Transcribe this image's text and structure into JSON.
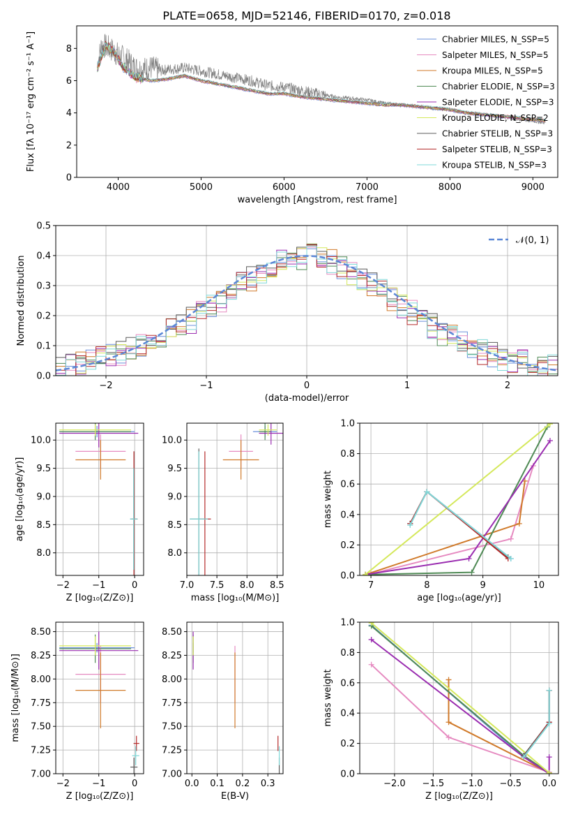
{
  "chart_data": [
    {
      "type": "line",
      "title": "PLATE=0658, MJD=52146, FIBERID=0170, z=0.018",
      "xlabel": "wavelength [Angstrom, rest frame]",
      "ylabel": "Flux [fλ 10⁻¹⁷ erg cm⁻² s⁻¹ A⁻¹]",
      "xlim": [
        3500,
        9300
      ],
      "ylim": [
        0,
        9.4
      ],
      "xticks": [
        4000,
        5000,
        6000,
        7000,
        8000,
        9000
      ],
      "yticks": [
        0,
        2,
        4,
        6,
        8
      ],
      "grid": false,
      "legend_position": "upper right",
      "data_series": {
        "name": "data",
        "color": "#808080",
        "x": [
          3750,
          3800,
          3900,
          4000,
          4100,
          4200,
          4300,
          4400,
          4500,
          4600,
          4800,
          5000,
          5200,
          5400,
          5600,
          5800,
          6000,
          6200,
          6400,
          6600,
          6800,
          7000,
          7200,
          7400,
          7600,
          7800,
          8000,
          8200,
          8400,
          8600,
          8800,
          9000,
          9150
        ],
        "y": [
          7.0,
          8.2,
          8.0,
          7.6,
          7.3,
          6.8,
          6.7,
          6.8,
          6.6,
          6.7,
          6.8,
          6.6,
          6.4,
          6.2,
          6.0,
          5.7,
          5.6,
          5.4,
          5.2,
          5.0,
          4.9,
          4.8,
          4.6,
          4.5,
          4.4,
          4.3,
          4.2,
          4.0,
          3.9,
          3.8,
          3.6,
          3.5,
          3.4
        ]
      },
      "series": [
        {
          "name": "Chabrier MILES, N_SSP=5",
          "color": "#6a8fdb"
        },
        {
          "name": "Salpeter MILES, N_SSP=5",
          "color": "#e68ac0"
        },
        {
          "name": "Kroupa MILES, N_SSP=5",
          "color": "#d07a2a"
        },
        {
          "name": "Chabrier ELODIE, N_SSP=3",
          "color": "#4f8a55"
        },
        {
          "name": "Salpeter ELODIE, N_SSP=3",
          "color": "#9a2cb0"
        },
        {
          "name": "Kroupa ELODIE, N_SSP=2",
          "color": "#d4e85a"
        },
        {
          "name": "Chabrier STELIB, N_SSP=3",
          "color": "#5a5a5a"
        },
        {
          "name": "Salpeter STELIB, N_SSP=3",
          "color": "#b52a2a"
        },
        {
          "name": "Kroupa STELIB, N_SSP=3",
          "color": "#7fd8d8"
        }
      ],
      "model_x": [
        3750,
        3850,
        3950,
        4050,
        4200,
        4400,
        4600,
        4800,
        5000,
        5200,
        5400,
        5600,
        5800,
        6000,
        6200,
        6400,
        6600,
        6800,
        7000,
        7200,
        7400,
        7600,
        7800,
        8000,
        8200,
        8400,
        8600,
        8800,
        9000,
        9150
      ],
      "model_y": [
        6.8,
        8.2,
        7.8,
        6.9,
        6.2,
        6.0,
        6.1,
        6.3,
        6.0,
        5.8,
        5.6,
        5.4,
        5.2,
        5.2,
        5.0,
        4.9,
        4.8,
        4.7,
        4.6,
        4.5,
        4.5,
        4.4,
        4.3,
        4.2,
        4.0,
        3.9,
        3.8,
        3.7,
        3.6,
        3.5
      ]
    },
    {
      "type": "bar",
      "xlabel": "(data-model)/error",
      "ylabel": "Normed distribution",
      "xlim": [
        -2.5,
        2.5
      ],
      "ylim": [
        0,
        0.5
      ],
      "xticks": [
        -2,
        -1,
        0,
        1,
        2
      ],
      "yticks": [
        0.0,
        0.1,
        0.2,
        0.3,
        0.4,
        0.5
      ],
      "grid": true,
      "legend_position": "upper right",
      "gaussian": {
        "name": "𝒩(0, 1)",
        "color": "#5b87d6",
        "mu": 0,
        "sigma": 1
      },
      "bin_edges": [
        -2.5,
        -2.4,
        -2.3,
        -2.2,
        -2.1,
        -2.0,
        -1.9,
        -1.8,
        -1.7,
        -1.6,
        -1.5,
        -1.4,
        -1.3,
        -1.2,
        -1.1,
        -1.0,
        -0.9,
        -0.8,
        -0.7,
        -0.6,
        -0.5,
        -0.4,
        -0.3,
        -0.2,
        -0.1,
        0.0,
        0.1,
        0.2,
        0.3,
        0.4,
        0.5,
        0.6,
        0.7,
        0.8,
        0.9,
        1.0,
        1.1,
        1.2,
        1.3,
        1.4,
        1.5,
        1.6,
        1.7,
        1.8,
        1.9,
        2.0,
        2.1,
        2.2,
        2.3,
        2.4,
        2.5
      ],
      "base_density": [
        0.02,
        0.03,
        0.04,
        0.05,
        0.055,
        0.065,
        0.075,
        0.085,
        0.1,
        0.11,
        0.13,
        0.145,
        0.165,
        0.185,
        0.21,
        0.235,
        0.255,
        0.28,
        0.3,
        0.32,
        0.345,
        0.365,
        0.38,
        0.39,
        0.395,
        0.395,
        0.39,
        0.38,
        0.365,
        0.345,
        0.325,
        0.3,
        0.28,
        0.26,
        0.235,
        0.21,
        0.19,
        0.165,
        0.145,
        0.125,
        0.11,
        0.095,
        0.08,
        0.07,
        0.06,
        0.05,
        0.045,
        0.035,
        0.03,
        0.025
      ]
    },
    {
      "type": "scatter",
      "xlabel": "Z [log₁₀(Z/Z⊙)]",
      "ylabel": "age  [log₁₀(age/yr)]",
      "xlim": [
        -2.2,
        0.25
      ],
      "ylim": [
        7.6,
        10.3
      ],
      "xticks": [
        -2,
        -1,
        0
      ],
      "yticks": [
        8.0,
        8.5,
        9.0,
        9.5,
        10.0
      ],
      "grid": true,
      "points": [
        {
          "series": 0,
          "x": -1.05,
          "xerr": 1.05,
          "y": 10.15,
          "yerr": 0.1
        },
        {
          "series": 1,
          "x": -0.95,
          "xerr": 0.7,
          "y": 9.8,
          "yerr": 0.3
        },
        {
          "series": 2,
          "x": -0.95,
          "xerr": 0.7,
          "y": 9.65,
          "yerr": 0.35
        },
        {
          "series": 3,
          "x": -1.1,
          "xerr": 1.0,
          "y": 10.15,
          "yerr": 0.15
        },
        {
          "series": 4,
          "x": -1.0,
          "xerr": 1.1,
          "y": 10.12,
          "yerr": 0.25
        },
        {
          "series": 5,
          "x": -1.1,
          "xerr": 1.0,
          "y": 10.18,
          "yerr": 0.1
        },
        {
          "series": 6,
          "x": -0.02,
          "xerr": 0.1,
          "y": 8.6,
          "yerr": 1.2
        },
        {
          "series": 7,
          "x": -0.02,
          "xerr": 0.05,
          "y": 8.6,
          "yerr": 1.2
        },
        {
          "series": 8,
          "x": -0.03,
          "xerr": 0.1,
          "y": 8.6,
          "yerr": 0.9
        }
      ]
    },
    {
      "type": "scatter",
      "xlabel": "mass [log₁₀(M/M⊙)]",
      "ylabel": "",
      "xlim": [
        7.0,
        8.6
      ],
      "ylim": [
        7.6,
        10.3
      ],
      "xticks": [
        7.0,
        7.5,
        8.0,
        8.5
      ],
      "yticks": [
        8.0,
        8.5,
        9.0,
        9.5,
        10.0
      ],
      "grid": true,
      "points": [
        {
          "series": 0,
          "x": 8.3,
          "xerr": 0.2,
          "y": 10.15,
          "yerr": 0.1
        },
        {
          "series": 1,
          "x": 7.9,
          "xerr": 0.2,
          "y": 9.8,
          "yerr": 0.3
        },
        {
          "series": 2,
          "x": 7.9,
          "xerr": 0.3,
          "y": 9.65,
          "yerr": 0.35
        },
        {
          "series": 3,
          "x": 8.3,
          "xerr": 0.1,
          "y": 10.15,
          "yerr": 0.15
        },
        {
          "series": 4,
          "x": 8.4,
          "xerr": 0.2,
          "y": 10.12,
          "yerr": 0.2
        },
        {
          "series": 5,
          "x": 8.35,
          "xerr": 0.15,
          "y": 10.18,
          "yerr": 0.1
        },
        {
          "series": 6,
          "x": 7.2,
          "xerr": 0.15,
          "y": 8.6,
          "yerr": 1.25
        },
        {
          "series": 7,
          "x": 7.3,
          "xerr": 0.1,
          "y": 8.6,
          "yerr": 1.2
        },
        {
          "series": 8,
          "x": 7.2,
          "xerr": 0.15,
          "y": 8.6,
          "yerr": 1.2
        }
      ]
    },
    {
      "type": "line",
      "xlabel": "age  [log₁₀(age/yr)]",
      "ylabel": "mass weight",
      "xlim": [
        6.8,
        10.35
      ],
      "ylim": [
        0,
        1.0
      ],
      "xticks": [
        7,
        8,
        9,
        10
      ],
      "yticks": [
        0.0,
        0.2,
        0.4,
        0.6,
        0.8,
        1.0
      ],
      "grid": true,
      "series": [
        {
          "series": 0,
          "x": [
            7.7,
            8.0,
            9.5
          ],
          "y": [
            0.34,
            0.55,
            0.11
          ]
        },
        {
          "series": 1,
          "x": [
            7.0,
            9.5,
            9.9
          ],
          "y": [
            0.01,
            0.24,
            0.72
          ]
        },
        {
          "series": 2,
          "x": [
            6.9,
            9.65,
            9.75
          ],
          "y": [
            0.005,
            0.34,
            0.62
          ]
        },
        {
          "series": 3,
          "x": [
            6.9,
            8.8,
            10.15
          ],
          "y": [
            0.005,
            0.02,
            0.975
          ]
        },
        {
          "series": 4,
          "x": [
            6.9,
            8.75,
            10.2
          ],
          "y": [
            0.005,
            0.11,
            0.885
          ]
        },
        {
          "series": 5,
          "x": [
            6.9,
            10.2
          ],
          "y": [
            0.005,
            0.995
          ]
        },
        {
          "series": 6,
          "x": [
            7.7,
            8.0,
            9.45
          ],
          "y": [
            0.34,
            0.55,
            0.12
          ]
        },
        {
          "series": 7,
          "x": [
            7.7,
            8.0,
            9.45
          ],
          "y": [
            0.34,
            0.55,
            0.11
          ]
        },
        {
          "series": 8,
          "x": [
            7.7,
            8.0,
            9.5
          ],
          "y": [
            0.33,
            0.55,
            0.11
          ]
        }
      ]
    },
    {
      "type": "scatter",
      "xlabel": "Z [log₁₀(Z/Z⊙)]",
      "ylabel": "mass [log₁₀(M/M⊙)]",
      "xlim": [
        -2.2,
        0.25
      ],
      "ylim": [
        7.0,
        8.6
      ],
      "xticks": [
        -2,
        -1,
        0
      ],
      "yticks": [
        7.0,
        7.25,
        7.5,
        7.75,
        8.0,
        8.25,
        8.5
      ],
      "grid": true,
      "points": [
        {
          "series": 0,
          "x": -1.05,
          "xerr": 1.05,
          "y": 8.33,
          "yerr": 0.05
        },
        {
          "series": 1,
          "x": -0.95,
          "xerr": 0.7,
          "y": 8.05,
          "yerr": 0.3
        },
        {
          "series": 2,
          "x": -0.95,
          "xerr": 0.7,
          "y": 7.88,
          "yerr": 0.4
        },
        {
          "series": 3,
          "x": -1.1,
          "xerr": 1.0,
          "y": 8.32,
          "yerr": 0.15
        },
        {
          "series": 4,
          "x": -1.0,
          "xerr": 1.1,
          "y": 8.3,
          "yerr": 0.2
        },
        {
          "series": 5,
          "x": -1.1,
          "xerr": 1.0,
          "y": 8.35,
          "yerr": 0.1
        },
        {
          "series": 6,
          "x": -0.02,
          "xerr": 0.1,
          "y": 7.07,
          "yerr": 0.1
        },
        {
          "series": 7,
          "x": 0.05,
          "xerr": 0.08,
          "y": 7.32,
          "yerr": 0.08
        },
        {
          "series": 8,
          "x": 0.03,
          "xerr": 0.1,
          "y": 7.19,
          "yerr": 0.1
        }
      ]
    },
    {
      "type": "scatter",
      "xlabel": "E(B-V)",
      "ylabel": "",
      "xlim": [
        -0.02,
        0.36
      ],
      "ylim": [
        7.0,
        8.6
      ],
      "xticks": [
        0.0,
        0.1,
        0.2,
        0.3
      ],
      "yticks": [
        7.0,
        7.25,
        7.5,
        7.75,
        8.0,
        8.25,
        8.5
      ],
      "grid": true,
      "points": [
        {
          "series": 0,
          "x": 0.005,
          "xerr": 0.0,
          "y": 8.33,
          "yerr": 0.05
        },
        {
          "series": 1,
          "x": 0.17,
          "xerr": 0.0,
          "y": 8.05,
          "yerr": 0.3
        },
        {
          "series": 2,
          "x": 0.17,
          "xerr": 0.0,
          "y": 7.88,
          "yerr": 0.4
        },
        {
          "series": 3,
          "x": 0.005,
          "xerr": 0.0,
          "y": 8.32,
          "yerr": 0.15
        },
        {
          "series": 4,
          "x": 0.005,
          "xerr": 0.0,
          "y": 8.3,
          "yerr": 0.2
        },
        {
          "series": 5,
          "x": 0.005,
          "xerr": 0.0,
          "y": 8.35,
          "yerr": 0.1
        },
        {
          "series": 6,
          "x": 0.345,
          "xerr": 0.0,
          "y": 7.07,
          "yerr": 0.1
        },
        {
          "series": 7,
          "x": 0.34,
          "xerr": 0.0,
          "y": 7.32,
          "yerr": 0.08
        },
        {
          "series": 8,
          "x": 0.345,
          "xerr": 0.0,
          "y": 7.19,
          "yerr": 0.1
        }
      ]
    },
    {
      "type": "line",
      "xlabel": "Z [log₁₀(Z/Z⊙)]",
      "ylabel": "mass weight",
      "xlim": [
        -2.45,
        0.12
      ],
      "ylim": [
        0,
        1.0
      ],
      "xticks": [
        -2.0,
        -1.5,
        -1.0,
        -0.5,
        0.0
      ],
      "yticks": [
        0.0,
        0.2,
        0.4,
        0.6,
        0.8,
        1.0
      ],
      "grid": true,
      "series": [
        {
          "series": 0,
          "x": [
            -2.3,
            -0.33,
            0.0,
            0.0
          ],
          "y": [
            0.98,
            0.11,
            0.34,
            0.55
          ]
        },
        {
          "series": 1,
          "x": [
            -2.3,
            -1.3,
            0.0
          ],
          "y": [
            0.72,
            0.24,
            0.01
          ]
        },
        {
          "series": 2,
          "x": [
            -1.3,
            -1.3,
            0.0
          ],
          "y": [
            0.62,
            0.34,
            0.005
          ]
        },
        {
          "series": 3,
          "x": [
            -2.3,
            -0.33,
            0.0
          ],
          "y": [
            0.975,
            0.12,
            0.005
          ]
        },
        {
          "series": 4,
          "x": [
            -2.3,
            -0.33,
            0.0,
            0.0
          ],
          "y": [
            0.885,
            0.11,
            0.0,
            0.11
          ]
        },
        {
          "series": 5,
          "x": [
            -2.3,
            0.0
          ],
          "y": [
            0.995,
            0.005
          ]
        },
        {
          "series": 6,
          "x": [
            -0.33,
            0.0,
            0.0
          ],
          "y": [
            0.12,
            0.34,
            0.55
          ]
        },
        {
          "series": 7,
          "x": [
            -0.33,
            0.0,
            0.0
          ],
          "y": [
            0.11,
            0.34,
            0.55
          ]
        },
        {
          "series": 8,
          "x": [
            -0.33,
            0.0,
            0.0
          ],
          "y": [
            0.11,
            0.33,
            0.55
          ]
        }
      ]
    }
  ]
}
